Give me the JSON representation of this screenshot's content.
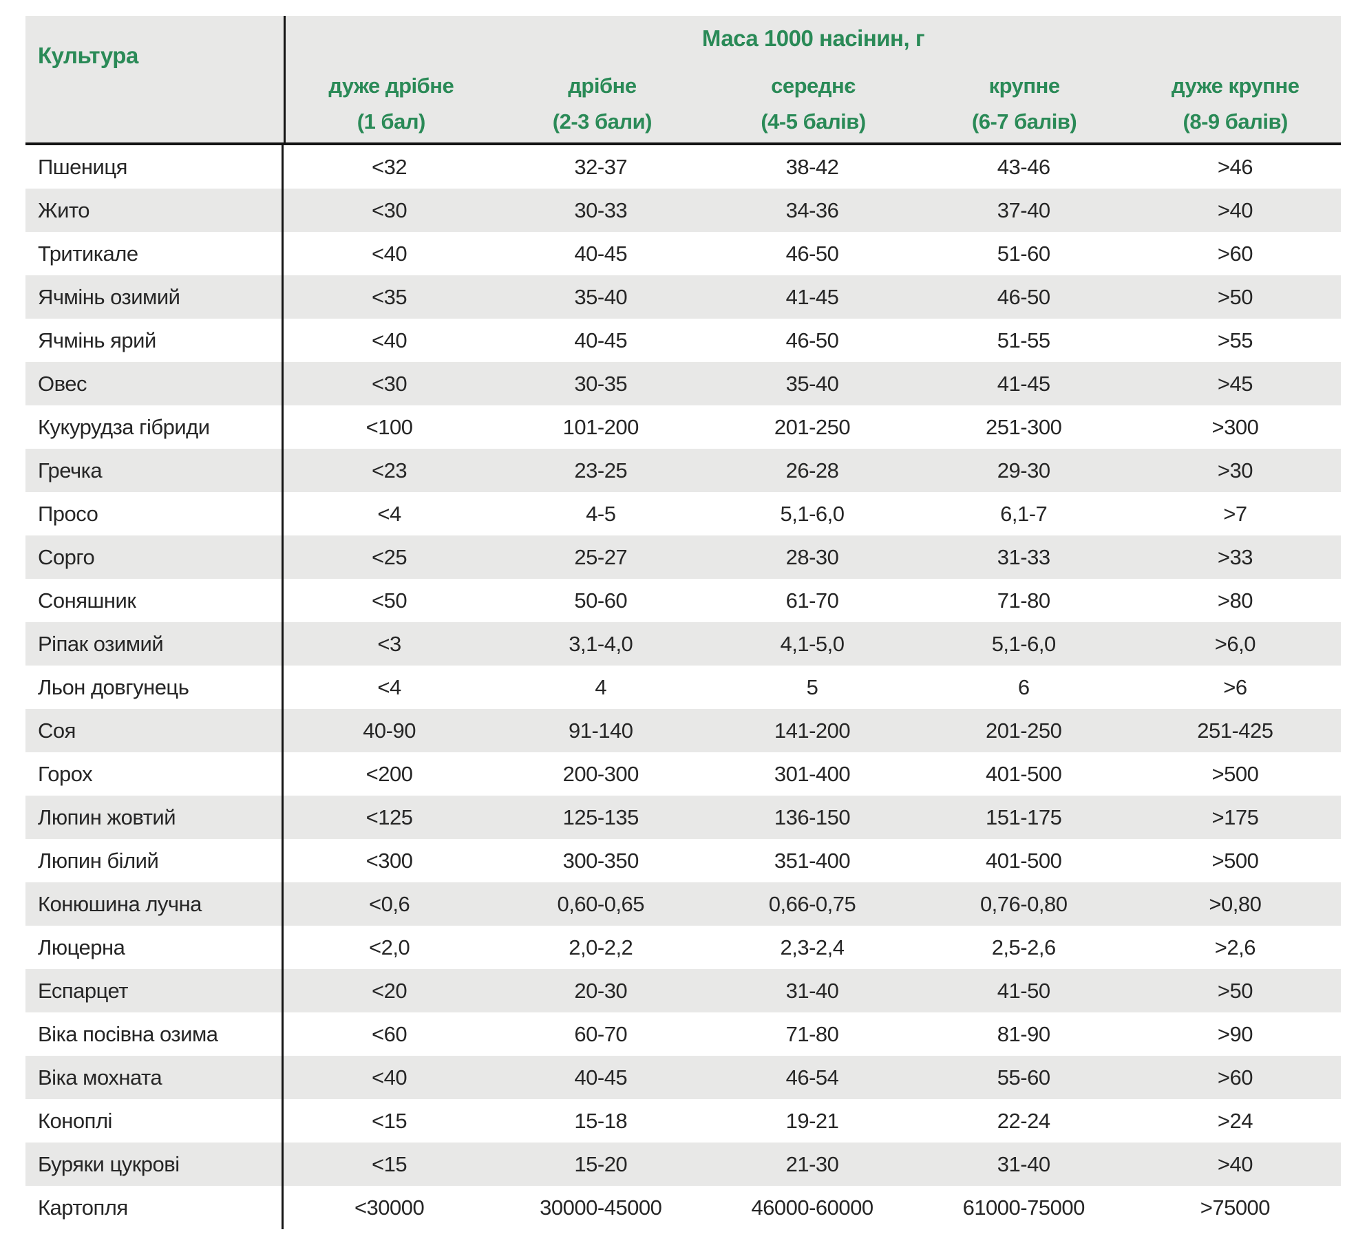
{
  "table": {
    "culture_header": "Культура",
    "group_header": "Маса 1000 насінин, г",
    "columns": [
      {
        "label": "дуже дрібне",
        "sub": "(1 бал)"
      },
      {
        "label": "дрібне",
        "sub": "(2-3 бали)"
      },
      {
        "label": "середнє",
        "sub": "(4-5 балів)"
      },
      {
        "label": "крупне",
        "sub": "(6-7 балів)"
      },
      {
        "label": "дуже крупне",
        "sub": "(8-9 балів)"
      }
    ],
    "rows": [
      {
        "culture": "Пшениця",
        "values": [
          "<32",
          "32-37",
          "38-42",
          "43-46",
          ">46"
        ]
      },
      {
        "culture": "Жито",
        "values": [
          "<30",
          "30-33",
          "34-36",
          "37-40",
          ">40"
        ]
      },
      {
        "culture": "Тритикале",
        "values": [
          "<40",
          "40-45",
          "46-50",
          "51-60",
          ">60"
        ]
      },
      {
        "culture": "Ячмінь озимий",
        "values": [
          "<35",
          "35-40",
          "41-45",
          "46-50",
          ">50"
        ]
      },
      {
        "culture": "Ячмінь ярий",
        "values": [
          "<40",
          "40-45",
          "46-50",
          "51-55",
          ">55"
        ]
      },
      {
        "culture": "Овес",
        "values": [
          "<30",
          "30-35",
          "35-40",
          "41-45",
          ">45"
        ]
      },
      {
        "culture": "Кукурудза гібриди",
        "values": [
          "<100",
          "101-200",
          "201-250",
          "251-300",
          ">300"
        ]
      },
      {
        "culture": "Гречка",
        "values": [
          "<23",
          "23-25",
          "26-28",
          "29-30",
          ">30"
        ]
      },
      {
        "culture": "Просо",
        "values": [
          "<4",
          "4-5",
          "5,1-6,0",
          "6,1-7",
          ">7"
        ]
      },
      {
        "culture": "Сорго",
        "values": [
          "<25",
          "25-27",
          "28-30",
          "31-33",
          ">33"
        ]
      },
      {
        "culture": "Соняшник",
        "values": [
          "<50",
          "50-60",
          "61-70",
          "71-80",
          ">80"
        ]
      },
      {
        "culture": "Ріпак озимий",
        "values": [
          "<3",
          "3,1-4,0",
          "4,1-5,0",
          "5,1-6,0",
          ">6,0"
        ]
      },
      {
        "culture": "Льон довгунець",
        "values": [
          "<4",
          "4",
          "5",
          "6",
          ">6"
        ]
      },
      {
        "culture": "Соя",
        "values": [
          "40-90",
          "91-140",
          "141-200",
          "201-250",
          "251-425"
        ]
      },
      {
        "culture": "Горох",
        "values": [
          "<200",
          "200-300",
          "301-400",
          "401-500",
          ">500"
        ]
      },
      {
        "culture": "Люпин жовтий",
        "values": [
          "<125",
          "125-135",
          "136-150",
          "151-175",
          ">175"
        ]
      },
      {
        "culture": "Люпин білий",
        "values": [
          "<300",
          "300-350",
          "351-400",
          "401-500",
          ">500"
        ]
      },
      {
        "culture": "Конюшина лучна",
        "values": [
          "<0,6",
          "0,60-0,65",
          "0,66-0,75",
          "0,76-0,80",
          ">0,80"
        ]
      },
      {
        "culture": "Люцерна",
        "values": [
          "<2,0",
          "2,0-2,2",
          "2,3-2,4",
          "2,5-2,6",
          ">2,6"
        ]
      },
      {
        "culture": "Еспарцет",
        "values": [
          "<20",
          "20-30",
          "31-40",
          "41-50",
          ">50"
        ]
      },
      {
        "culture": "Віка посівна озима",
        "values": [
          "<60",
          "60-70",
          "71-80",
          "81-90",
          ">90"
        ]
      },
      {
        "culture": "Віка мохната",
        "values": [
          "<40",
          "40-45",
          "46-54",
          "55-60",
          ">60"
        ]
      },
      {
        "culture": "Коноплі",
        "values": [
          "<15",
          "15-18",
          "19-21",
          "22-24",
          ">24"
        ]
      },
      {
        "culture": "Буряки цукрові",
        "values": [
          "<15",
          "15-20",
          "21-30",
          "31-40",
          ">40"
        ]
      },
      {
        "culture": "Картопля",
        "values": [
          "<30000",
          "30000-45000",
          "46000-60000",
          "61000-75000",
          ">75000"
        ]
      }
    ]
  },
  "colors": {
    "accent_green": "#2a8a57",
    "row_alt": "#e8e8e7",
    "text": "#262626",
    "line": "#141414"
  }
}
